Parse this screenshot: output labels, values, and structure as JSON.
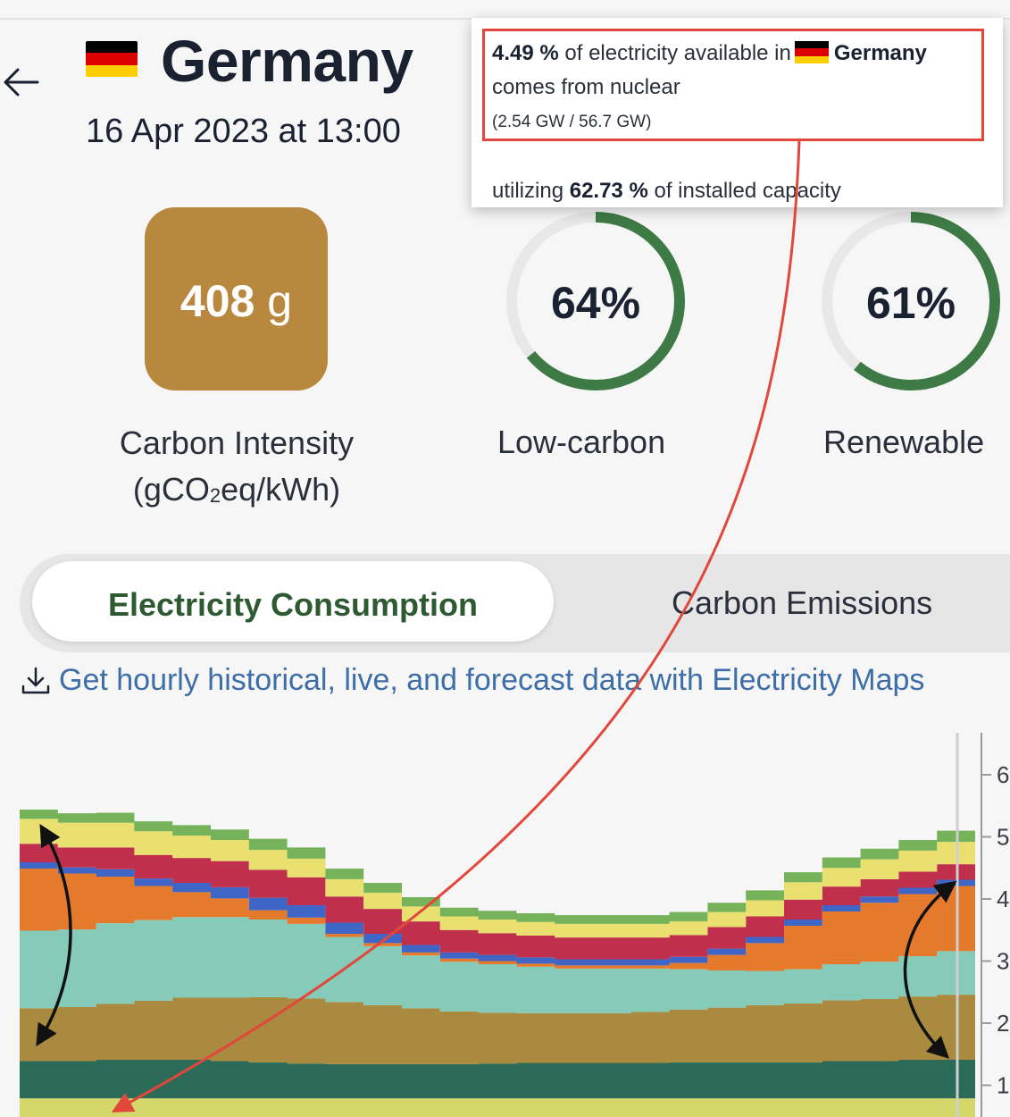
{
  "header": {
    "back_icon": "arrow-left-icon",
    "country": "Germany",
    "flag_colors": [
      "#000000",
      "#dd0000",
      "#ffce00"
    ],
    "datetime": "16 Apr 2023 at 13:00"
  },
  "stats": {
    "carbon_intensity": {
      "number": "408",
      "unit": "g",
      "label_prefix": "Carbon Intensity",
      "label_paren_open": "(gCO",
      "label_sub": "2",
      "label_rest": "eq/kWh)",
      "color": "#b8883f"
    },
    "low_carbon": {
      "value": "64%",
      "fraction": 0.64,
      "label": "Low-carbon"
    },
    "renewable": {
      "value": "61%",
      "fraction": 0.61,
      "label": "Renewable"
    },
    "gauge_color": "#3e7a45",
    "gauge_track_color": "#e8e8e8"
  },
  "tabs": [
    {
      "label": "Electricity Consumption",
      "active": true
    },
    {
      "label": "Carbon Emissions",
      "active": false
    }
  ],
  "download": {
    "icon": "download-icon",
    "text": "Get hourly historical, live, and forecast data with Electricity Maps"
  },
  "tooltip": {
    "percent": "4.49 %",
    "text1": "of electricity available in",
    "country": "Germany",
    "text2": "comes from nuclear",
    "detail": "(2.54 GW / 56.7 GW)",
    "util_prefix": "utilizing",
    "util_value": "62.73 %",
    "util_suffix": "of installed capacity",
    "highlight_color": "#e2473c"
  },
  "chart_data": {
    "type": "area",
    "yticks": [
      "1",
      "2",
      "3",
      "4",
      "5",
      "6"
    ],
    "colors": {
      "nuclear": "#d4d86a",
      "dark-green": "#2c6b57",
      "brown": "#a98a3e",
      "teal": "#86cbb9",
      "orange": "#e57a2c",
      "blue": "#3f66c6",
      "red": "#c0304c",
      "yellow": "#e9e070",
      "green": "#76b25a"
    },
    "series": [
      {
        "key": "nuclear",
        "values": [
          0.3,
          0.3,
          0.3,
          0.3,
          0.3,
          0.3,
          0.3,
          0.3,
          0.3,
          0.3,
          0.3,
          0.3,
          0.3,
          0.3,
          0.3,
          0.3,
          0.3,
          0.3,
          0.3,
          0.3,
          0.3,
          0.3,
          0.3,
          0.3,
          0.3
        ]
      },
      {
        "key": "dark-green",
        "values": [
          0.6,
          0.6,
          0.62,
          0.62,
          0.62,
          0.6,
          0.58,
          0.56,
          0.55,
          0.55,
          0.55,
          0.55,
          0.56,
          0.57,
          0.57,
          0.57,
          0.57,
          0.58,
          0.58,
          0.58,
          0.58,
          0.6,
          0.6,
          0.62,
          0.62
        ]
      },
      {
        "key": "brown",
        "values": [
          0.85,
          0.87,
          0.9,
          0.95,
          1.0,
          1.02,
          1.05,
          1.05,
          1.0,
          0.95,
          0.9,
          0.85,
          0.82,
          0.8,
          0.8,
          0.8,
          0.82,
          0.85,
          0.88,
          0.92,
          0.95,
          0.98,
          1.0,
          1.02,
          1.05
        ]
      },
      {
        "key": "teal",
        "values": [
          1.25,
          1.25,
          1.3,
          1.3,
          1.3,
          1.3,
          1.25,
          1.2,
          1.05,
          0.95,
          0.85,
          0.8,
          0.78,
          0.75,
          0.72,
          0.72,
          0.7,
          0.65,
          0.6,
          0.55,
          0.55,
          0.58,
          0.6,
          0.65,
          0.7
        ]
      },
      {
        "key": "orange",
        "values": [
          1.0,
          0.9,
          0.75,
          0.55,
          0.4,
          0.3,
          0.15,
          0.1,
          0.05,
          0.05,
          0.05,
          0.05,
          0.05,
          0.05,
          0.05,
          0.05,
          0.05,
          0.1,
          0.25,
          0.45,
          0.7,
          0.85,
          0.95,
          1.0,
          1.05
        ]
      },
      {
        "key": "blue",
        "values": [
          0.1,
          0.1,
          0.12,
          0.12,
          0.15,
          0.18,
          0.2,
          0.2,
          0.18,
          0.15,
          0.12,
          0.1,
          0.1,
          0.1,
          0.1,
          0.1,
          0.1,
          0.1,
          0.1,
          0.1,
          0.1,
          0.1,
          0.1,
          0.1,
          0.1
        ]
      },
      {
        "key": "red",
        "values": [
          0.3,
          0.32,
          0.35,
          0.38,
          0.4,
          0.42,
          0.45,
          0.45,
          0.42,
          0.4,
          0.38,
          0.36,
          0.35,
          0.35,
          0.35,
          0.35,
          0.35,
          0.35,
          0.35,
          0.33,
          0.32,
          0.3,
          0.28,
          0.26,
          0.25
        ]
      },
      {
        "key": "yellow",
        "values": [
          0.4,
          0.4,
          0.4,
          0.38,
          0.36,
          0.34,
          0.32,
          0.3,
          0.28,
          0.26,
          0.24,
          0.22,
          0.22,
          0.22,
          0.22,
          0.22,
          0.22,
          0.22,
          0.24,
          0.26,
          0.28,
          0.3,
          0.32,
          0.34,
          0.36
        ]
      },
      {
        "key": "green",
        "values": [
          0.15,
          0.15,
          0.16,
          0.16,
          0.17,
          0.17,
          0.18,
          0.18,
          0.17,
          0.16,
          0.15,
          0.14,
          0.14,
          0.14,
          0.14,
          0.14,
          0.14,
          0.15,
          0.15,
          0.16,
          0.16,
          0.17,
          0.17,
          0.17,
          0.18
        ]
      }
    ]
  },
  "annotations": {
    "arrow_color": "#e2473c",
    "double_arrow_color": "#111111"
  }
}
